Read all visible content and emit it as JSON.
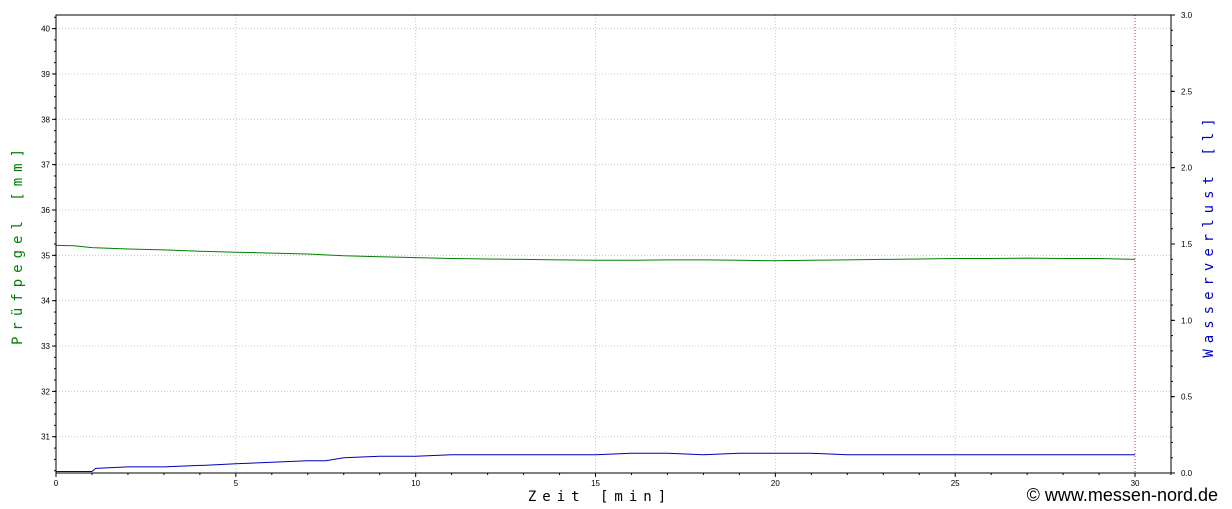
{
  "chart_data": {
    "type": "line",
    "x_axis": {
      "label": "Zeit [min]",
      "range": [
        0,
        31
      ],
      "ticks": [
        0,
        5,
        10,
        15,
        20,
        25,
        30
      ]
    },
    "y_axis_left": {
      "label": "Prüfpegel [mm]",
      "range": [
        30.2,
        40.3
      ],
      "ticks": [
        31,
        32,
        33,
        34,
        35,
        36,
        37,
        38,
        39,
        40
      ],
      "color": "#008000"
    },
    "y_axis_right": {
      "label": "Wasserverlust [l]",
      "range": [
        0.0,
        3.0
      ],
      "ticks": [
        "0.0",
        "0.5",
        "1.0",
        "1.5",
        "2.0",
        "2.5",
        "3.0"
      ],
      "color": "#0000c0"
    },
    "grid": true,
    "end_marker_x": 30,
    "end_marker_color": "#c0392b",
    "series": [
      {
        "axis": "left",
        "color": "#008000",
        "x": [
          0,
          0.5,
          1,
          2,
          3,
          4,
          5,
          6,
          7,
          8,
          9,
          10,
          11,
          12,
          13,
          14,
          15,
          16,
          17,
          18,
          19,
          20,
          21,
          22,
          23,
          24,
          25,
          26,
          27,
          28,
          29,
          30
        ],
        "y": [
          35.22,
          35.21,
          35.17,
          35.14,
          35.12,
          35.09,
          35.07,
          35.05,
          35.03,
          34.99,
          34.97,
          34.95,
          34.93,
          34.92,
          34.91,
          34.9,
          34.89,
          34.89,
          34.9,
          34.9,
          34.89,
          34.88,
          34.89,
          34.9,
          34.91,
          34.92,
          34.93,
          34.93,
          34.94,
          34.93,
          34.93,
          34.91
        ]
      },
      {
        "axis": "right",
        "color": "#0000c0",
        "x": [
          0,
          1,
          1.1,
          2,
          3,
          4,
          4.1,
          5,
          6,
          7,
          7.5,
          8,
          9,
          10,
          11,
          12,
          13,
          14,
          15,
          16,
          17,
          18,
          19,
          20,
          21,
          22,
          23,
          24,
          25,
          26,
          27,
          28,
          29,
          30
        ],
        "y": [
          0.01,
          0.01,
          0.03,
          0.04,
          0.04,
          0.05,
          0.05,
          0.06,
          0.07,
          0.08,
          0.08,
          0.1,
          0.11,
          0.11,
          0.12,
          0.12,
          0.12,
          0.12,
          0.12,
          0.13,
          0.13,
          0.12,
          0.13,
          0.13,
          0.13,
          0.12,
          0.12,
          0.12,
          0.12,
          0.12,
          0.12,
          0.12,
          0.12,
          0.12
        ]
      }
    ]
  },
  "credit": "© www.messen-nord.de"
}
